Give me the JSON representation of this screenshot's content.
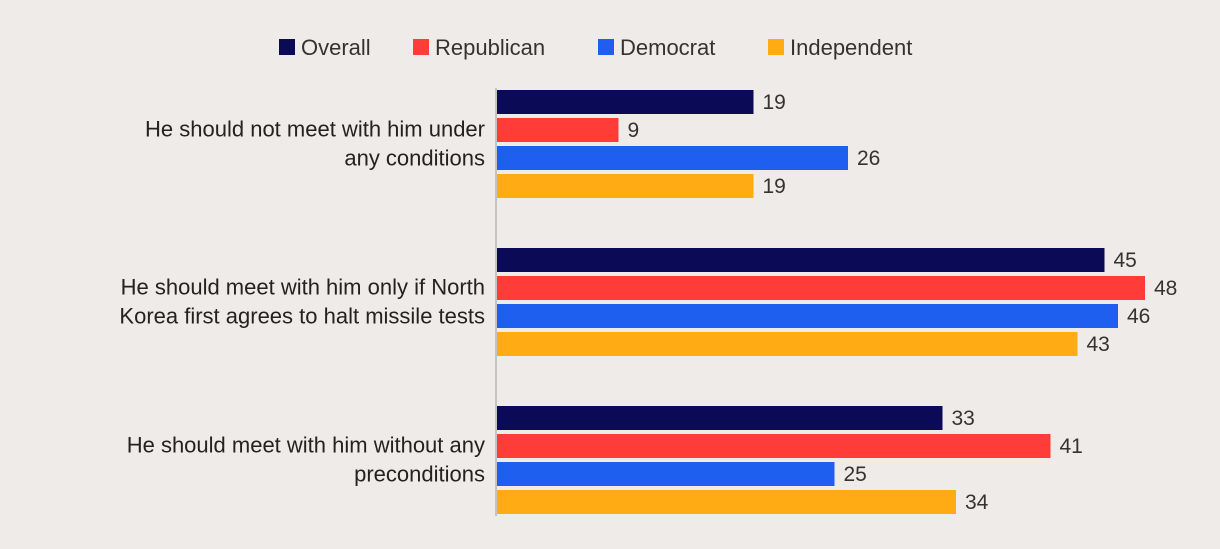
{
  "chart_data": {
    "type": "bar",
    "orientation": "horizontal",
    "title": "",
    "xlabel": "",
    "ylabel": "",
    "xlim": [
      0,
      48
    ],
    "grid": false,
    "legend_position": "top",
    "categories": [
      [
        "He should not meet with him under",
        "any conditions"
      ],
      [
        "He should meet with him only if North",
        "Korea first agrees to halt missile tests"
      ],
      [
        "He should meet with him without any",
        "preconditions"
      ]
    ],
    "series": [
      {
        "name": "Overall",
        "color": "#0b0a57",
        "values": [
          19,
          45,
          33
        ]
      },
      {
        "name": "Republican",
        "color": "#ff3c38",
        "values": [
          9,
          48,
          41
        ]
      },
      {
        "name": "Democrat",
        "color": "#1e5ff0",
        "values": [
          26,
          46,
          25
        ]
      },
      {
        "name": "Independent",
        "color": "#ffab14",
        "values": [
          19,
          43,
          34
        ]
      }
    ]
  }
}
